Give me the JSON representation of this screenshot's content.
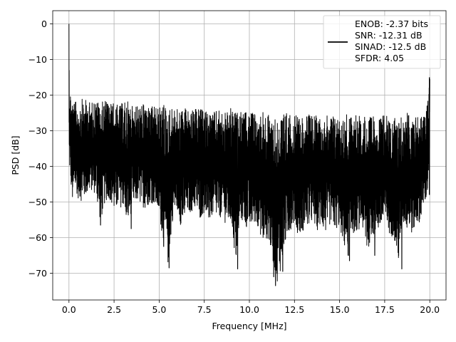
{
  "chart_data": {
    "type": "line",
    "title": "",
    "xlabel": "Frequency [MHz]",
    "ylabel": "PSD [dB]",
    "xlim": [
      -0.9,
      20.9
    ],
    "ylim": [
      -77.5,
      3.7
    ],
    "xticks": [
      0.0,
      2.5,
      5.0,
      7.5,
      10.0,
      12.5,
      15.0,
      17.5,
      20.0
    ],
    "xtick_labels": [
      "0.0",
      "2.5",
      "5.0",
      "7.5",
      "10.0",
      "12.5",
      "15.0",
      "17.5",
      "20.0"
    ],
    "yticks": [
      0,
      -10,
      -20,
      -30,
      -40,
      -50,
      -60,
      -70
    ],
    "ytick_labels": [
      "0",
      "−10",
      "−20",
      "−30",
      "−40",
      "−50",
      "−60",
      "−70"
    ],
    "grid": true,
    "legend_position": "top-right",
    "series": [
      {
        "name": "ENOB: -2.37 bits\nSNR: -12.31 dB\nSINAD: -12.5 dB\nSFDR: 4.05",
        "color": "#000000",
        "legend_lines": [
          "ENOB: -2.37 bits",
          "SNR: -12.31 dB",
          "SINAD: -12.5 dB",
          "SFDR: 4.05"
        ],
        "x": [
          0.0,
          0.02,
          0.05,
          0.1,
          0.15,
          0.2,
          0.3,
          0.4,
          0.5,
          0.75,
          1.0,
          1.25,
          1.5,
          1.75,
          2.0,
          2.25,
          2.5,
          2.75,
          3.0,
          3.25,
          3.5,
          3.75,
          4.0,
          4.25,
          4.5,
          4.75,
          5.0,
          5.25,
          5.5,
          5.75,
          6.0,
          6.25,
          6.5,
          6.75,
          7.0,
          7.25,
          7.5,
          7.75,
          8.0,
          8.25,
          8.5,
          8.75,
          9.0,
          9.25,
          9.5,
          9.75,
          10.0,
          10.25,
          10.5,
          10.75,
          11.0,
          11.25,
          11.5,
          11.75,
          12.0,
          12.25,
          12.5,
          12.75,
          13.0,
          13.25,
          13.5,
          13.75,
          14.0,
          14.25,
          14.5,
          14.75,
          15.0,
          15.25,
          15.5,
          15.75,
          16.0,
          16.25,
          16.5,
          16.75,
          17.0,
          17.25,
          17.5,
          17.75,
          18.0,
          18.25,
          18.5,
          18.75,
          19.0,
          19.25,
          19.5,
          19.75,
          19.98,
          20.0
        ],
        "upper_envelope": [
          0.0,
          -15.0,
          -17.0,
          -19.0,
          -20.0,
          -21.0,
          -21.5,
          -22.0,
          -22.0,
          -21.0,
          -21.5,
          -22.0,
          -21.0,
          -22.5,
          -21.0,
          -22.0,
          -22.0,
          -23.0,
          -22.0,
          -21.5,
          -23.0,
          -22.5,
          -23.0,
          -22.0,
          -23.5,
          -23.0,
          -23.5,
          -22.0,
          -24.0,
          -23.0,
          -24.0,
          -23.5,
          -23.0,
          -24.5,
          -24.0,
          -23.5,
          -24.5,
          -24.0,
          -25.0,
          -24.0,
          -24.5,
          -25.0,
          -23.5,
          -25.0,
          -24.5,
          -25.0,
          -24.5,
          -25.0,
          -25.5,
          -24.0,
          -25.5,
          -25.0,
          -25.0,
          -25.5,
          -24.5,
          -25.5,
          -26.0,
          -25.0,
          -26.0,
          -25.5,
          -25.0,
          -26.0,
          -25.5,
          -26.0,
          -25.0,
          -25.5,
          -26.0,
          -25.5,
          -25.0,
          -26.0,
          -25.5,
          -26.0,
          -25.0,
          -26.5,
          -25.5,
          -26.0,
          -25.5,
          -26.0,
          -26.5,
          -25.5,
          -26.0,
          -25.0,
          -25.5,
          -26.0,
          -25.0,
          -26.0,
          -15.0,
          -15.0
        ],
        "lower_envelope": [
          -35.0,
          -43.0,
          -41.0,
          -45.0,
          -48.0,
          -51.0,
          -48.0,
          -47.0,
          -49.0,
          -50.0,
          -48.0,
          -47.0,
          -48.0,
          -56.0,
          -50.0,
          -49.0,
          -53.0,
          -52.0,
          -51.0,
          -57.0,
          -52.0,
          -50.0,
          -51.0,
          -52.0,
          -50.0,
          -51.0,
          -54.0,
          -62.0,
          -68.0,
          -55.0,
          -52.0,
          -58.0,
          -54.0,
          -53.0,
          -52.0,
          -55.0,
          -53.0,
          -56.0,
          -54.0,
          -55.0,
          -54.0,
          -57.0,
          -56.0,
          -68.0,
          -55.0,
          -57.0,
          -58.0,
          -56.0,
          -57.0,
          -62.0,
          -60.0,
          -65.0,
          -73.0,
          -69.0,
          -62.0,
          -58.0,
          -56.0,
          -60.0,
          -58.0,
          -57.0,
          -56.0,
          -58.0,
          -57.0,
          -59.0,
          -56.0,
          -58.0,
          -57.0,
          -63.0,
          -66.0,
          -59.0,
          -58.0,
          -57.0,
          -65.0,
          -60.0,
          -59.0,
          -58.0,
          -57.0,
          -59.0,
          -60.0,
          -68.0,
          -56.0,
          -58.0,
          -59.0,
          -57.0,
          -55.0,
          -50.0,
          -48.0,
          -25.0
        ],
        "notable_dips": [
          [
            1.75,
            -56.5
          ],
          [
            3.45,
            -57.5
          ],
          [
            5.25,
            -62.5
          ],
          [
            5.55,
            -68.5
          ],
          [
            9.35,
            -68.8
          ],
          [
            11.35,
            -71.0
          ],
          [
            11.45,
            -73.5
          ],
          [
            11.85,
            -69.5
          ],
          [
            15.55,
            -66.5
          ],
          [
            16.95,
            -65.0
          ],
          [
            18.45,
            -68.8
          ]
        ],
        "notable_peaks": [
          [
            0.0,
            0.0
          ],
          [
            19.98,
            -15.0
          ]
        ]
      }
    ]
  }
}
